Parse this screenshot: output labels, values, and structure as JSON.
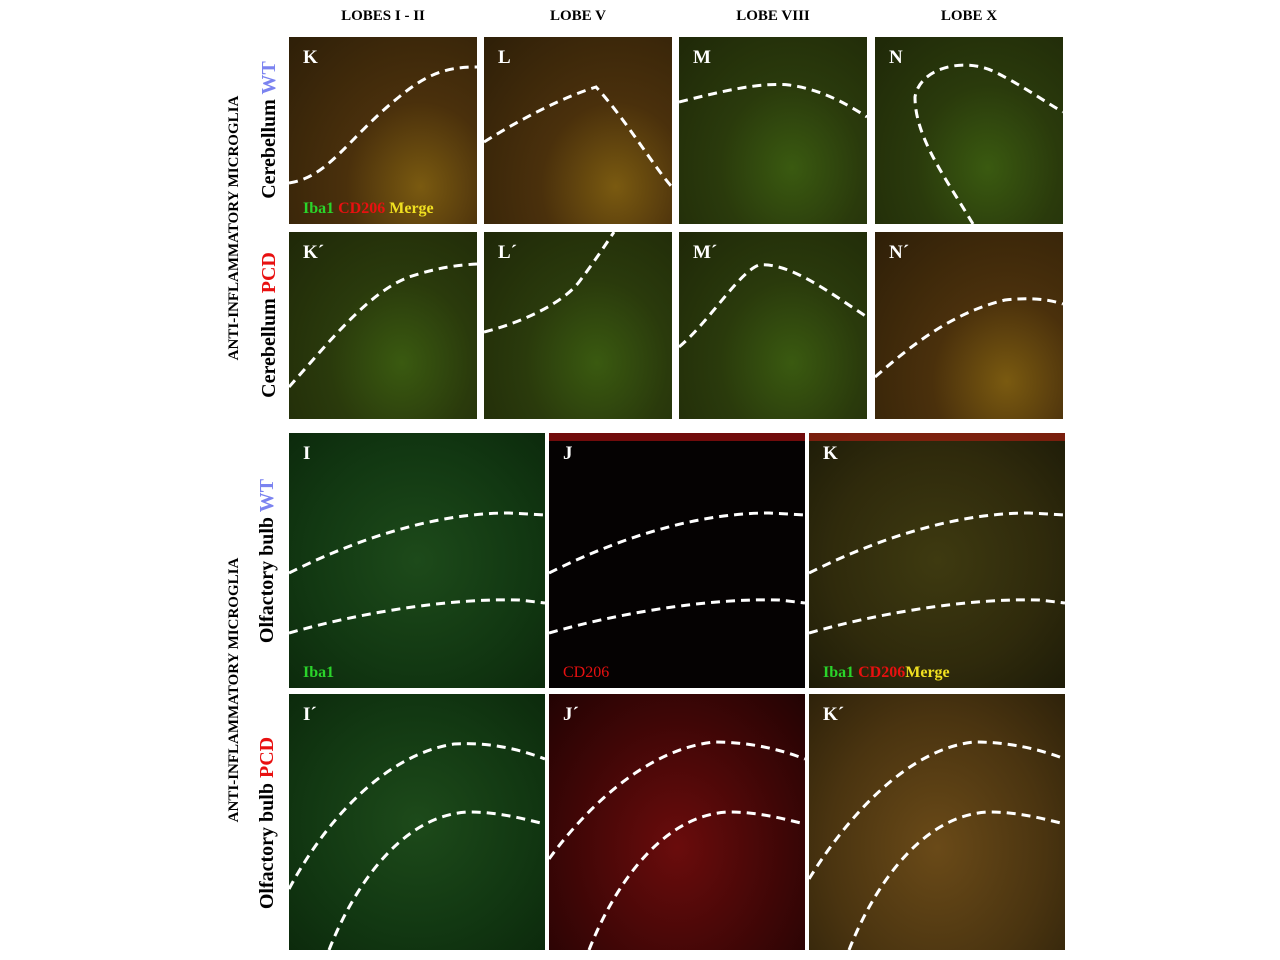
{
  "column_headers": [
    "LOBES I - II",
    "LOBE V",
    "LOBE VIII",
    "LOBE X"
  ],
  "section_labels": {
    "top": "ANTI-INFLAMMATORY MICROGLIA",
    "bottom": "ANTI-INFLAMMATORY MICROGLIA"
  },
  "row_labels": {
    "cerebellum_wt": {
      "region": "Cerebellum",
      "genotype": "WT"
    },
    "cerebellum_pcd": {
      "region": "Cerebellum",
      "genotype": "PCD"
    },
    "ob_wt": {
      "region": "Olfactory bulb",
      "genotype": "WT"
    },
    "ob_pcd": {
      "region": "Olfactory bulb",
      "genotype": "PCD"
    }
  },
  "panels": {
    "cerebellum_wt": [
      "K",
      "L",
      "M",
      "N"
    ],
    "cerebellum_pcd": [
      "K´",
      "L´",
      "M´",
      "N´"
    ],
    "ob_wt": [
      "I",
      "J",
      "K"
    ],
    "ob_pcd": [
      "I´",
      "J´",
      "K´"
    ]
  },
  "stains": {
    "iba1": "Iba1",
    "cd206": "CD206",
    "merge": "Merge"
  },
  "colors": {
    "iba1": "#2ad42a",
    "cd206": "#e81010",
    "merge": "#f0e020",
    "wt": "#7b83f0",
    "pcd": "#e81010"
  }
}
